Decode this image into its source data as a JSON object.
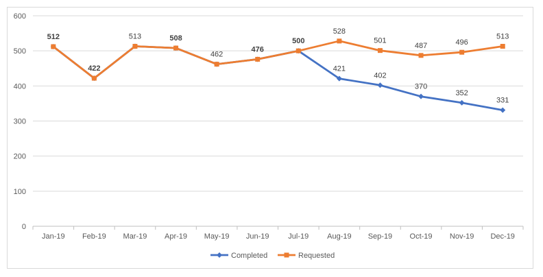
{
  "chart_data": {
    "type": "line",
    "title": "",
    "xlabel": "",
    "ylabel": "",
    "ylim": [
      0,
      600
    ],
    "y_ticks": [
      0,
      100,
      200,
      300,
      400,
      500,
      600
    ],
    "grid": true,
    "legend_position": "bottom",
    "categories": [
      "Jan-19",
      "Feb-19",
      "Mar-19",
      "Apr-19",
      "May-19",
      "Jun-19",
      "Jul-19",
      "Aug-19",
      "Sep-19",
      "Oct-19",
      "Nov-19",
      "Dec-19"
    ],
    "series": [
      {
        "name": "Completed",
        "color": "#4472c4",
        "marker": "diamond",
        "values": [
          512,
          422,
          513,
          508,
          462,
          476,
          500,
          421,
          402,
          370,
          352,
          331
        ],
        "labels": [
          "",
          "",
          "",
          "",
          "",
          "",
          "",
          "421",
          "402",
          "370",
          "352",
          "331"
        ]
      },
      {
        "name": "Requested",
        "color": "#ed7d31",
        "marker": "square",
        "values": [
          512,
          422,
          513,
          508,
          462,
          476,
          500,
          528,
          501,
          487,
          496,
          513
        ],
        "labels": [
          "512",
          "422",
          "513",
          "508",
          "462",
          "476",
          "500",
          "528",
          "501",
          "487",
          "496",
          "513"
        ],
        "bold_labels": [
          "512",
          "422",
          "508",
          "476",
          "500"
        ]
      }
    ]
  }
}
